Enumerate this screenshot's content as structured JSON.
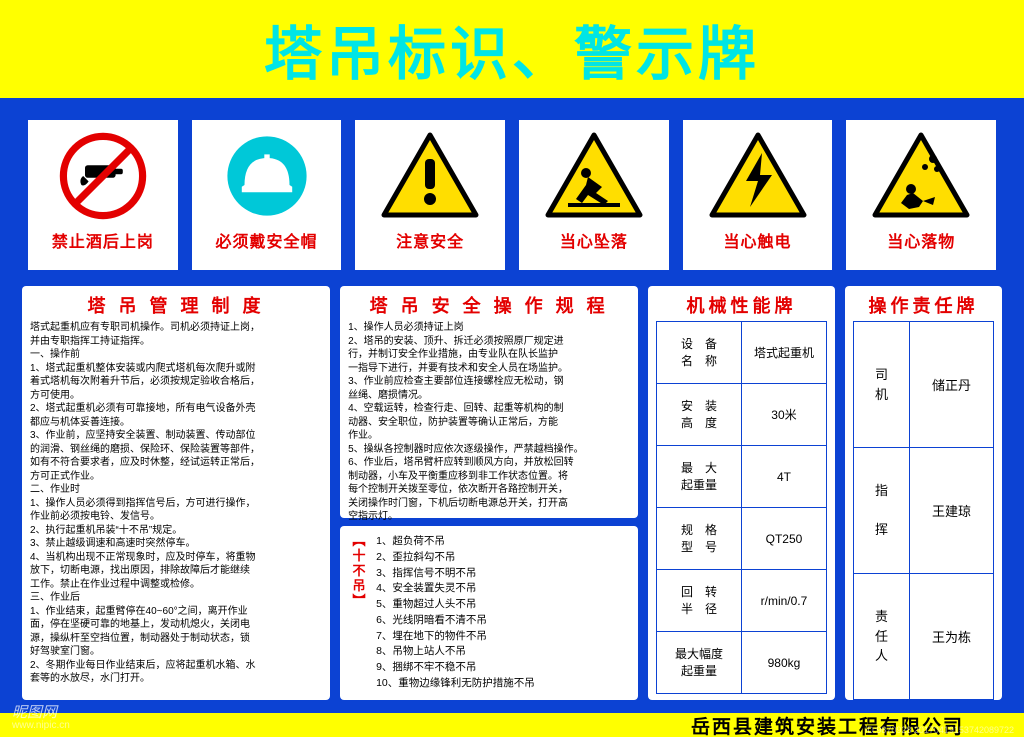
{
  "title": "塔吊标识、警示牌",
  "signs": [
    {
      "label": "禁止酒后上岗",
      "type": "prohibit"
    },
    {
      "label": "必须戴安全帽",
      "type": "helmet"
    },
    {
      "label": "注意安全",
      "type": "warn-exclaim"
    },
    {
      "label": "当心坠落",
      "type": "warn-fall"
    },
    {
      "label": "当心触电",
      "type": "warn-electric"
    },
    {
      "label": "当心落物",
      "type": "warn-object"
    }
  ],
  "panel1": {
    "title": "塔 吊 管 理 制 度",
    "body": "塔式起重机应有专职司机操作。司机必须持证上岗，\n并由专职指挥工持证指挥。\n一、操作前\n1、塔式起重机整体安装或内爬式塔机每次爬升或附\n着式塔机每次附着升节后，必须按规定验收合格后，\n方可使用。\n2、塔式起重机必须有可靠接地，所有电气设备外壳\n都应与机体妥善连接。\n3、作业前，应坚持安全装置、制动装置、传动部位\n的润滑、钢丝绳的磨损、保险环、保险装置等部件，\n如有不符合要求者，应及时休整，经试运转正常后，\n方可正式作业。\n二、作业时\n1、操作人员必须得到指挥信号后，方可进行操作，\n作业前必须按电铃、发信号。\n2、执行起重机吊装“十不吊”规定。\n3、禁止越级调速和高速时突然停车。\n4、当机构出现不正常现象时，应及时停车，将重物\n放下，切断电源，找出原因，排除故障后才能继续\n工作。禁止在作业过程中调整或检修。\n三、作业后\n1、作业结束，起重臂停在40~60°之间，离开作业\n面，停在坚硬可靠的地基上，发动机熄火，关闭电\n源，操纵杆至空挡位置，制动器处于制动状态，锁\n好驾驶室门窗。\n2、冬期作业每日作业结束后，应将起重机水箱、水\n套等的水放尽，水门打开。"
  },
  "panel2": {
    "title": "塔 吊 安 全 操 作 规 程",
    "body": "1、操作人员必须持证上岗\n2、塔吊的安装、顶升、拆迁必须按照原厂规定进\n行，并制订安全作业措施，由专业队在队长监护\n一指导下进行，并要有技术和安全人员在场监护。\n3、作业前应检查主要部位连接螺栓应无松动，钢\n丝绳、磨损情况。\n4、空载运转，检查行走、回转、起重等机构的制\n动器、安全职位，防护装置等确认正常后，方能\n作业。\n5、操纵各控制器时应依次逐级操作，严禁越档操作。\n6、作业后，塔吊臂杆应转到顺风方向，并放松回转\n制动器，小车及平衡重应移到非工作状态位置。将\n每个控制开关拨至零位，依次断开各路控制开关，\n关闭操作时门窗，下机后切断电源总开关，打开高\n空指示灯。"
  },
  "tenNoLift": {
    "sideLabel": "︻十不吊︼",
    "items": [
      "1、超负荷不吊",
      "2、歪拉斜勾不吊",
      "3、指挥信号不明不吊",
      "4、安全装置失灵不吊",
      "5、重物超过人头不吊",
      "6、光线阴暗看不清不吊",
      "7、埋在地下的物件不吊",
      "8、吊物上站人不吊",
      "9、捆绑不牢不稳不吊",
      "10、重物边缘锋利无防护措施不吊"
    ]
  },
  "specs": {
    "title": "机械性能牌",
    "rows": [
      {
        "label": "设　备\n名　称",
        "value": "塔式起重机"
      },
      {
        "label": "安　装\n高　度",
        "value": "30米"
      },
      {
        "label": "最　大\n起重量",
        "value": "4T"
      },
      {
        "label": "规　格\n型　号",
        "value": "QT250"
      },
      {
        "label": "回　转\n半　径",
        "value": "r/min/0.7"
      },
      {
        "label": "最大幅度\n起重量",
        "value": "980kg"
      }
    ]
  },
  "responsibility": {
    "title": "操作责任牌",
    "rows": [
      {
        "role": "司\n机",
        "name": "储正丹"
      },
      {
        "role": "指\n\n挥",
        "name": "王建琼"
      },
      {
        "role": "责\n任\n人",
        "name": "王为栋"
      }
    ]
  },
  "footer": "岳西县建筑安装工程有限公司",
  "watermark": {
    "main": "昵图网",
    "sub": "www.nipic.cn"
  },
  "meta": "ID:9870928  20170419153742089722",
  "colors": {
    "bg": "#0C42D3",
    "titleBg": "#FFFF00",
    "titleText": "#00E5E5",
    "red": "#E30000",
    "helmet": "#00C8D8",
    "warnYellow": "#FFDE00"
  }
}
